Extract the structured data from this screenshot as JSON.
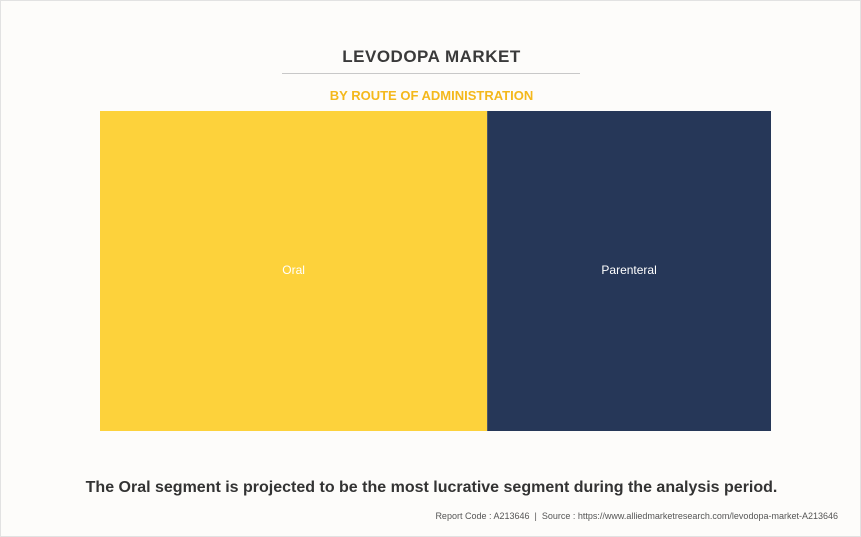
{
  "header": {
    "title": "LEVODOPA MARKET",
    "subtitle": "BY ROUTE OF ADMINISTRATION"
  },
  "chart_data": {
    "type": "treemap",
    "title": "LEVODOPA MARKET",
    "subtitle": "BY ROUTE OF ADMINISTRATION",
    "categories": [
      "Oral",
      "Parenteral"
    ],
    "values": [
      57.7,
      42.3
    ],
    "value_unit": "share of area (%)",
    "colors": [
      "#fdd23b",
      "#263758"
    ],
    "label_color": "#ffffff",
    "grid": false,
    "legend": "none"
  },
  "footer": {
    "caption": "The Oral segment is projected to be the most lucrative segment during the analysis period.",
    "report_code": "Report Code : A213646",
    "separator": "|",
    "source": "Source : https://www.alliedmarketresearch.com/levodopa-market-A213646"
  }
}
